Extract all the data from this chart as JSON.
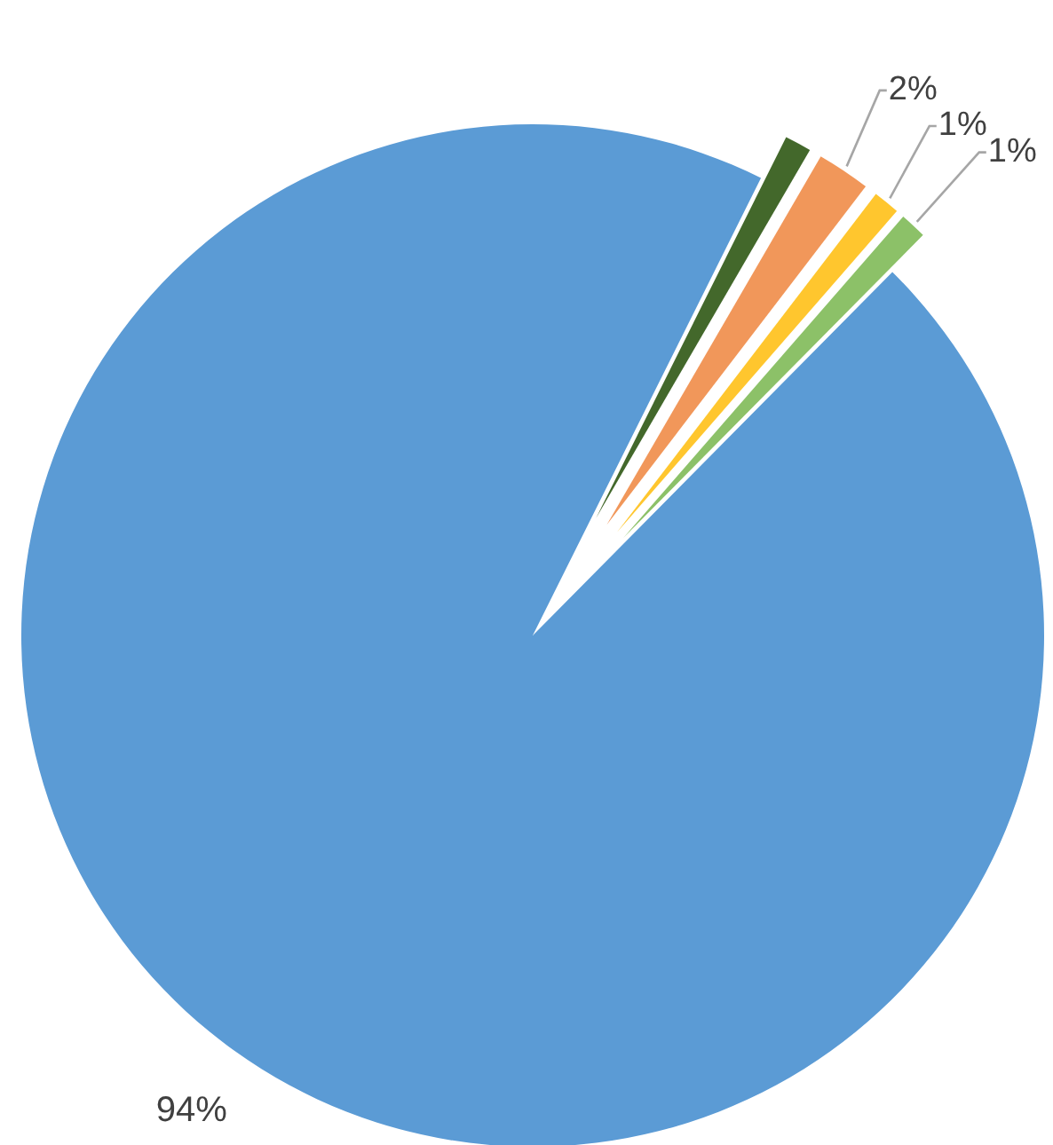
{
  "chart_data": {
    "type": "pie",
    "categories": [
      null,
      null,
      null,
      null,
      null
    ],
    "values": [
      94,
      1,
      2,
      1,
      1
    ],
    "value_labels": [
      "94%",
      null,
      "2%",
      "1%",
      "1%"
    ],
    "colors": [
      "#5b9bd5",
      "#43682b",
      "#f1975a",
      "#ffc62e",
      "#8cc168"
    ]
  }
}
